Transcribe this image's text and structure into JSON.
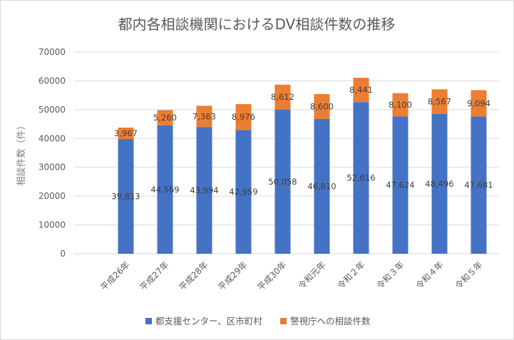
{
  "chart_data": {
    "type": "bar",
    "stacked": true,
    "title": "都内各相談機関におけるDV相談件数の推移",
    "xlabel": "",
    "ylabel": "相談件数（件）",
    "ylim": [
      0,
      70000
    ],
    "yticks": [
      0,
      10000,
      20000,
      30000,
      40000,
      50000,
      60000,
      70000
    ],
    "grid": true,
    "legend_position": "bottom",
    "categories": [
      "平成26年",
      "平成27年",
      "平成28年",
      "平成29年",
      "平成30年",
      "令和元年",
      "令和２年",
      "令和３年",
      "令和４年",
      "令和５年"
    ],
    "series": [
      {
        "name": "都支援センター、区市町村",
        "color": "#4472c4",
        "values": [
          39813,
          44569,
          43994,
          42959,
          50058,
          46810,
          52616,
          47624,
          48496,
          47681
        ],
        "labels": [
          "39,813",
          "44,569",
          "43,994",
          "42,959",
          "50,058",
          "46,810",
          "52,616",
          "47,624",
          "48,496",
          "47,681"
        ]
      },
      {
        "name": "警視庁への相談件数",
        "color": "#ed7d31",
        "values": [
          3967,
          5260,
          7363,
          8976,
          8612,
          8600,
          8441,
          8100,
          8567,
          9094
        ],
        "labels": [
          "3,967",
          "5,260",
          "7,363",
          "8,976",
          "8,612",
          "8,600",
          "8,441",
          "8,100",
          "8,567",
          "9,094"
        ]
      }
    ]
  },
  "colors": {
    "gridline": "#d9d9d9",
    "text": "#595959"
  }
}
